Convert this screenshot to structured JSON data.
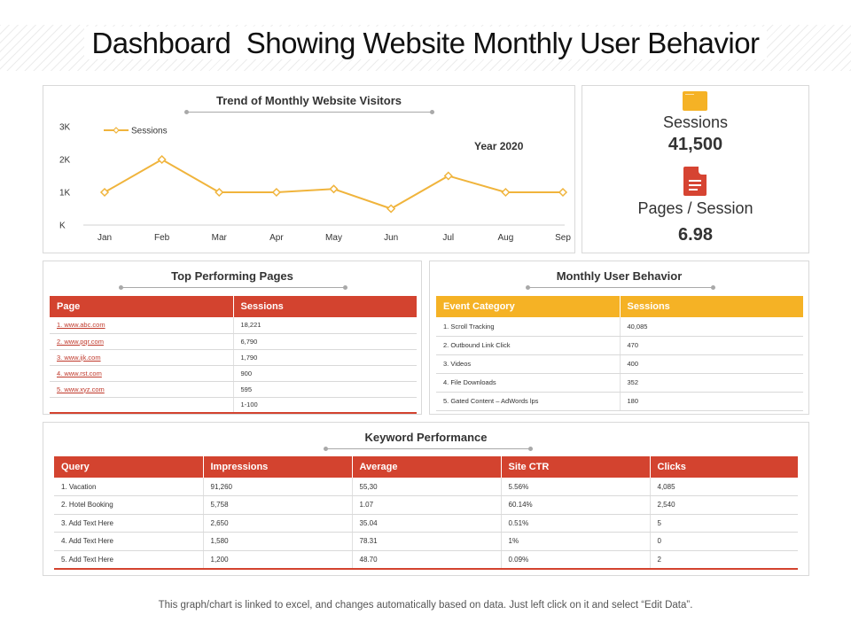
{
  "page": {
    "title": "Dashboard  Showing Website Monthly User Behavior",
    "footnote": "This graph/chart is linked to excel, and changes automatically based on data. Just left click on it and select “Edit Data”."
  },
  "colors": {
    "accent_red": "#d3432f",
    "accent_orange": "#f5b225",
    "line": "#f0b43c"
  },
  "trend": {
    "title": "Trend of Monthly Website Visitors",
    "year_label": "Year 2020"
  },
  "chart_data": {
    "type": "line",
    "title": "Trend of Monthly Website Visitors",
    "categories": [
      "Jan",
      "Feb",
      "Mar",
      "Apr",
      "May",
      "Jun",
      "Jul",
      "Aug",
      "Sep"
    ],
    "series": [
      {
        "name": "Sessions",
        "values": [
          1000,
          2000,
          1000,
          1000,
          1100,
          500,
          1500,
          1000,
          1000
        ]
      }
    ],
    "y_ticks": [
      {
        "value": 0,
        "label": "K"
      },
      {
        "value": 1000,
        "label": "1K"
      },
      {
        "value": 2000,
        "label": "2K"
      },
      {
        "value": 3000,
        "label": "3K"
      }
    ],
    "ylim": [
      0,
      3000
    ],
    "legend": "top-left",
    "grid": false
  },
  "kpi": {
    "sessions_label": "Sessions",
    "sessions_value": "41,500",
    "pages_label": "Pages / Session",
    "pages_value": "6.98"
  },
  "top_pages": {
    "title": "Top Performing Pages",
    "headers": [
      "Page",
      "Sessions"
    ],
    "rows": [
      [
        "1. www.abc.com",
        "18,221"
      ],
      [
        "2. www.pqr.com",
        "6,790"
      ],
      [
        "3. www.ijk.com",
        "1,790"
      ],
      [
        "4. www.rst.com",
        "900"
      ],
      [
        "5. www.xyz.com",
        "595"
      ],
      [
        "",
        "1-100"
      ]
    ]
  },
  "behavior": {
    "title": "Monthly User Behavior",
    "headers": [
      "Event Category",
      "Sessions"
    ],
    "rows": [
      [
        "1. Scroll Tracking",
        "40,085"
      ],
      [
        "2. Outbound  Link Click",
        "470"
      ],
      [
        "3. Videos",
        "400"
      ],
      [
        "4. File Downloads",
        "352"
      ],
      [
        "5. Gated Content – AdWords lps",
        "180"
      ]
    ]
  },
  "keywords": {
    "title": "Keyword Performance",
    "headers": [
      "Query",
      "Impressions",
      "Average",
      "Site CTR",
      "Clicks"
    ],
    "rows": [
      [
        "1. Vacation",
        "91,260",
        "55,30",
        "5.56%",
        "4,085"
      ],
      [
        "2. Hotel Booking",
        "5,758",
        "1.07",
        "60.14%",
        "2,540"
      ],
      [
        "3. Add Text Here",
        "2,650",
        "35.04",
        "0.51%",
        "5"
      ],
      [
        "4. Add Text Here",
        "1,580",
        "78.31",
        "1%",
        "0"
      ],
      [
        "5. Add Text Here",
        "1,200",
        "48.70",
        "0.09%",
        "2"
      ]
    ]
  }
}
